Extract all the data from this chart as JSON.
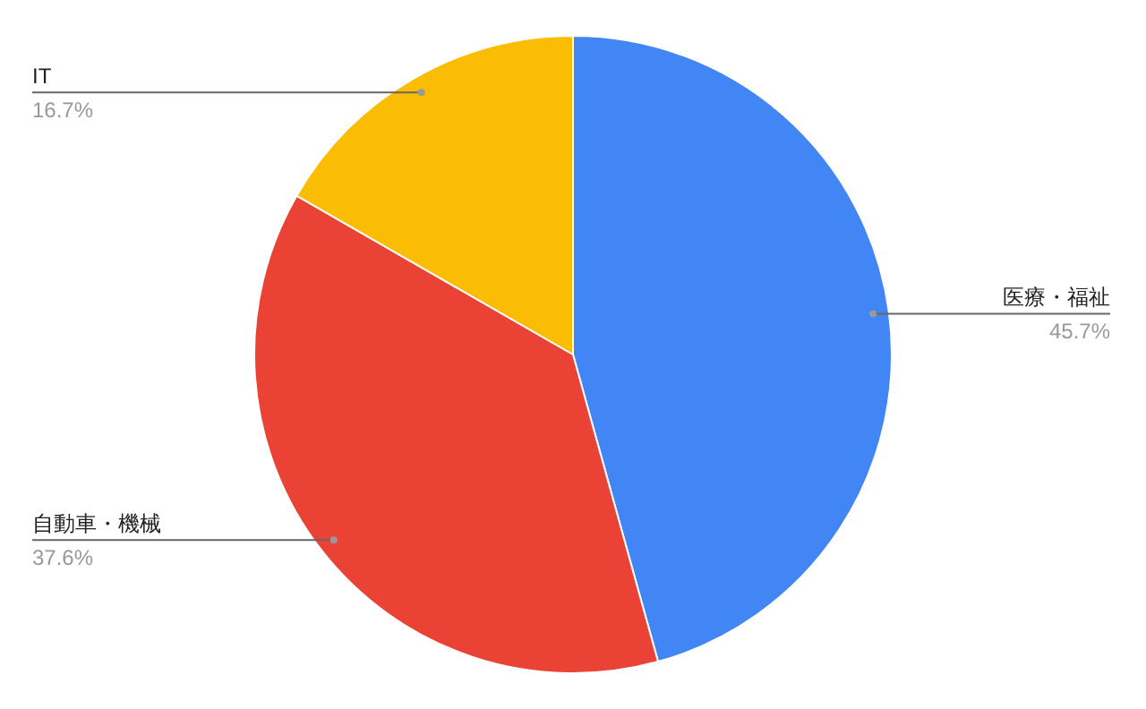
{
  "chart_data": {
    "type": "pie",
    "categories": [
      "医療・福祉",
      "自動車・機械",
      "IT"
    ],
    "values": [
      45.7,
      37.6,
      16.7
    ],
    "colors": [
      "#4285f4",
      "#ea4335",
      "#fbbc04"
    ],
    "value_labels": [
      "45.7%",
      "37.6%",
      "16.7%"
    ]
  }
}
